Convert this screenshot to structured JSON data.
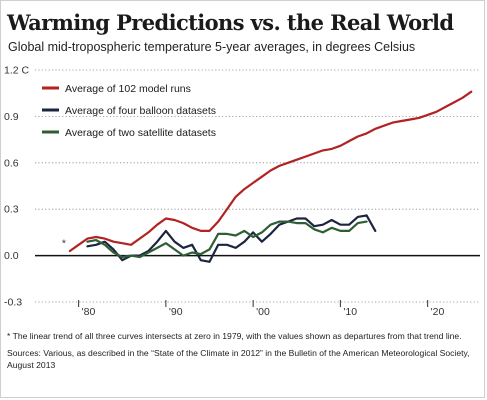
{
  "chart_data": {
    "type": "line",
    "title": "Warming Predictions vs. the Real World",
    "subtitle": "Global mid-tropospheric temperature 5-year averages, in degrees Celsius",
    "xlabel": "",
    "ylabel": "",
    "xlim": [
      1975,
      2026
    ],
    "ylim": [
      -0.3,
      1.2
    ],
    "y_ticks": [
      -0.3,
      0.0,
      0.3,
      0.6,
      0.9,
      1.2
    ],
    "y_tick_labels": [
      "-0.3",
      "0.0",
      "0.3",
      "0.6",
      "0.9",
      "1.2 C"
    ],
    "x_ticks": [
      1980,
      1990,
      2000,
      2010,
      2020
    ],
    "x_tick_labels": [
      "'80",
      "'90",
      "'00",
      "'10",
      "'20"
    ],
    "grid": "horizontal-dotted",
    "legend_position": "top-left",
    "annotation": "*",
    "series": [
      {
        "name": "Average of 102 model runs",
        "color": "#b22222",
        "x": [
          1979,
          1980,
          1981,
          1982,
          1983,
          1984,
          1985,
          1986,
          1987,
          1988,
          1989,
          1990,
          1991,
          1992,
          1993,
          1994,
          1995,
          1996,
          1997,
          1998,
          1999,
          2000,
          2001,
          2002,
          2003,
          2004,
          2005,
          2006,
          2007,
          2008,
          2009,
          2010,
          2011,
          2012,
          2013,
          2014,
          2015,
          2016,
          2017,
          2018,
          2019,
          2020,
          2021,
          2022,
          2023,
          2024,
          2025
        ],
        "values": [
          0.03,
          0.07,
          0.11,
          0.12,
          0.11,
          0.09,
          0.08,
          0.07,
          0.11,
          0.15,
          0.2,
          0.24,
          0.23,
          0.21,
          0.18,
          0.16,
          0.16,
          0.22,
          0.3,
          0.38,
          0.43,
          0.47,
          0.51,
          0.55,
          0.58,
          0.6,
          0.62,
          0.64,
          0.66,
          0.68,
          0.69,
          0.71,
          0.74,
          0.77,
          0.79,
          0.82,
          0.84,
          0.86,
          0.87,
          0.88,
          0.89,
          0.91,
          0.93,
          0.96,
          0.99,
          1.02,
          1.06
        ]
      },
      {
        "name": "Average of four balloon datasets",
        "color": "#1c2540",
        "x": [
          1981,
          1982,
          1983,
          1984,
          1985,
          1986,
          1987,
          1988,
          1989,
          1990,
          1991,
          1992,
          1993,
          1994,
          1995,
          1996,
          1997,
          1998,
          1999,
          2000,
          2001,
          2002,
          2003,
          2004,
          2005,
          2006,
          2007,
          2008,
          2009,
          2010,
          2011,
          2012,
          2013,
          2014
        ],
        "values": [
          0.06,
          0.07,
          0.09,
          0.04,
          -0.03,
          0.0,
          0.0,
          0.03,
          0.09,
          0.16,
          0.09,
          0.05,
          0.07,
          -0.03,
          -0.04,
          0.07,
          0.07,
          0.05,
          0.09,
          0.15,
          0.09,
          0.14,
          0.2,
          0.22,
          0.24,
          0.24,
          0.19,
          0.2,
          0.23,
          0.2,
          0.2,
          0.25,
          0.26,
          0.16
        ]
      },
      {
        "name": "Average of two satellite datasets",
        "color": "#2e5e35",
        "x": [
          1981,
          1982,
          1983,
          1984,
          1985,
          1986,
          1987,
          1988,
          1989,
          1990,
          1991,
          1992,
          1993,
          1994,
          1995,
          1996,
          1997,
          1998,
          1999,
          2000,
          2001,
          2002,
          2003,
          2004,
          2005,
          2006,
          2007,
          2008,
          2009,
          2010,
          2011,
          2012,
          2013
        ],
        "values": [
          0.09,
          0.1,
          0.07,
          0.02,
          -0.01,
          0.0,
          -0.01,
          0.02,
          0.05,
          0.08,
          0.04,
          0.0,
          0.02,
          0.01,
          0.04,
          0.14,
          0.14,
          0.13,
          0.16,
          0.12,
          0.15,
          0.2,
          0.22,
          0.22,
          0.21,
          0.21,
          0.17,
          0.15,
          0.18,
          0.16,
          0.16,
          0.21,
          0.22
        ]
      }
    ]
  },
  "footnote": "* The linear trend of all three curves intersects at zero in 1979, with the values shown as departures from that trend line.",
  "sources": "Sources: Various, as described in the “State of the Climate in 2012” in the Bulletin of the American Meteorological Society, August 2013"
}
